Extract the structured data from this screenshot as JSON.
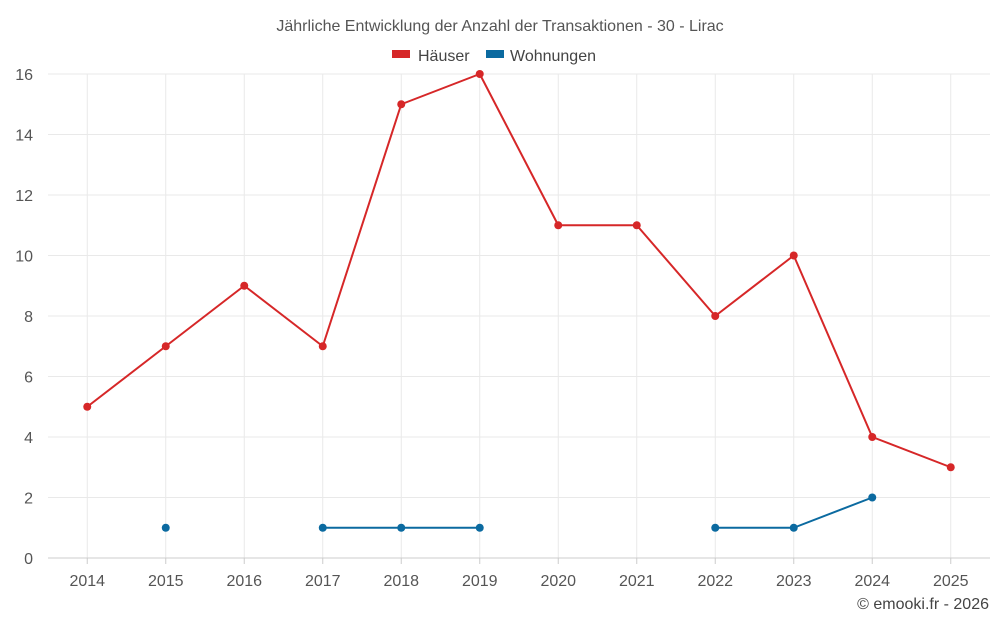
{
  "chart_data": {
    "type": "line",
    "title": "Jährliche Entwicklung der Anzahl der Transaktionen - 30 - Lirac",
    "categories": [
      "2014",
      "2015",
      "2016",
      "2017",
      "2018",
      "2019",
      "2020",
      "2021",
      "2022",
      "2023",
      "2024",
      "2025"
    ],
    "ylim": [
      0,
      16
    ],
    "yticks": [
      0,
      2,
      4,
      6,
      8,
      10,
      12,
      14,
      16
    ],
    "grid": true,
    "legend_position": "top-center",
    "series": [
      {
        "name": "Häuser",
        "color": "#d62728",
        "values": [
          5,
          7,
          9,
          7,
          15,
          16,
          11,
          11,
          8,
          10,
          4,
          3
        ]
      },
      {
        "name": "Wohnungen",
        "color": "#0b6aa0",
        "values": [
          null,
          1,
          null,
          1,
          1,
          1,
          null,
          null,
          1,
          1,
          2,
          null
        ]
      }
    ],
    "credit": "© emooki.fr - 2026"
  }
}
